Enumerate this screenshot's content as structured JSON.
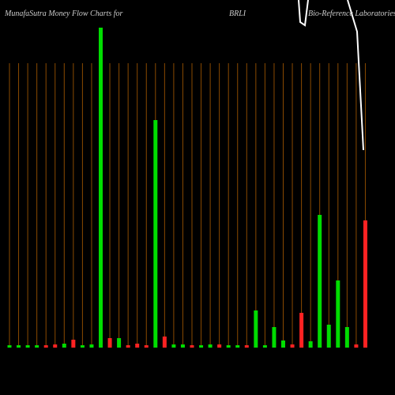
{
  "chart_data": {
    "type": "bar",
    "title": "MunafaSutra  Money Flow  Charts for",
    "ticker": "BRLI",
    "company": "Bio-Reference  Laboratories,  I",
    "values": [
      3,
      3,
      3,
      3,
      3,
      4,
      5,
      10,
      3,
      4,
      405,
      12,
      12,
      3,
      5,
      3,
      288,
      14,
      4,
      4,
      3,
      3,
      4,
      4,
      3,
      3,
      3,
      47,
      3,
      26,
      9,
      4,
      44,
      8,
      168,
      29,
      85,
      26,
      4,
      161
    ],
    "colors": [
      "#00dd00",
      "#00dd00",
      "#00dd00",
      "#00dd00",
      "#ff2222",
      "#ff2222",
      "#00dd00",
      "#ff2222",
      "#00dd00",
      "#00dd00",
      "#00dd00",
      "#ff2222",
      "#00dd00",
      "#ff2222",
      "#ff2222",
      "#ff2222",
      "#00dd00",
      "#ff2222",
      "#00dd00",
      "#00dd00",
      "#ff2222",
      "#00dd00",
      "#00dd00",
      "#ff2222",
      "#00dd00",
      "#00dd00",
      "#ff2222",
      "#00dd00",
      "#00dd00",
      "#00dd00",
      "#00dd00",
      "#ff2222",
      "#ff2222",
      "#00dd00",
      "#00dd00",
      "#00dd00",
      "#00dd00",
      "#00dd00",
      "#ff2222",
      "#ff2222"
    ]
  }
}
